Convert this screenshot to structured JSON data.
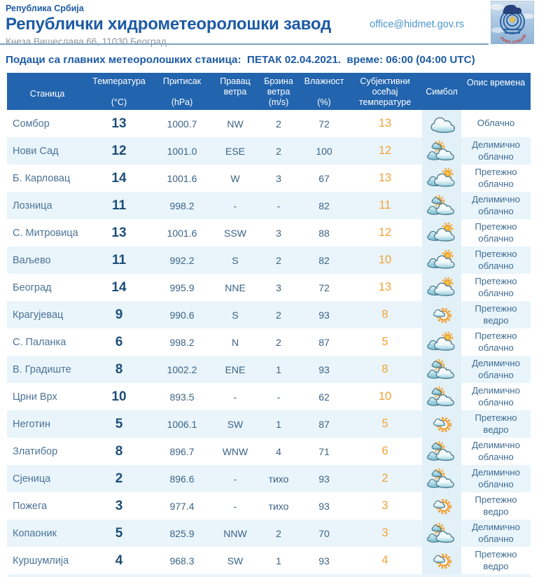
{
  "header": {
    "country": "Република Србија",
    "organization": "Републички хидрометеоролошки завод",
    "address": "Кнеза Вишеслава 66, 11030 Београд",
    "email": "office@hidmet.gov.rs",
    "logo_text": "РХМЗ СРБИЈЕ"
  },
  "subtitle": {
    "text": "Подаци са главних метеоролошких станица:  ПЕТАК 02.04.2021.  време: 06:00 (04:00 UTC)"
  },
  "table": {
    "columns": [
      {
        "id": "station",
        "label": "Станица",
        "unit": ""
      },
      {
        "id": "temperature",
        "label": "Температура",
        "unit": "(°C)"
      },
      {
        "id": "pressure",
        "label": "Притисак",
        "unit": "(hPa)"
      },
      {
        "id": "wind_dir",
        "label": "Правац ветра",
        "unit": ""
      },
      {
        "id": "wind_speed",
        "label": "Брзина ветра",
        "unit": "(m/s)"
      },
      {
        "id": "humidity",
        "label": "Влажност",
        "unit": "(%)"
      },
      {
        "id": "feels_like",
        "label": "Субјективни осећај температуре",
        "unit": ""
      },
      {
        "id": "symbol",
        "label": "Симбол",
        "unit": ""
      },
      {
        "id": "description",
        "label": "Опис времена",
        "unit": ""
      }
    ],
    "rows": [
      {
        "station": "Сомбор",
        "temperature": "13",
        "pressure": "1000.7",
        "wind_dir": "NW",
        "wind_speed": "2",
        "humidity": "72",
        "feels_like": "13",
        "icon": "cloudy",
        "description": "Облачно"
      },
      {
        "station": "Нови Сад",
        "temperature": "12",
        "pressure": "1001.0",
        "wind_dir": "ESE",
        "wind_speed": "2",
        "humidity": "100",
        "feels_like": "12",
        "icon": "partly-cloudy",
        "description": "Делимично облачно"
      },
      {
        "station": "Б. Карловац",
        "temperature": "14",
        "pressure": "1001.6",
        "wind_dir": "W",
        "wind_speed": "3",
        "humidity": "67",
        "feels_like": "13",
        "icon": "mostly-cloudy",
        "description": "Претежно облачно"
      },
      {
        "station": "Лозница",
        "temperature": "11",
        "pressure": "998.2",
        "wind_dir": "-",
        "wind_speed": "-",
        "humidity": "82",
        "feels_like": "11",
        "icon": "partly-cloudy",
        "description": "Делимично облачно"
      },
      {
        "station": "С. Митровица",
        "temperature": "13",
        "pressure": "1001.6",
        "wind_dir": "SSW",
        "wind_speed": "3",
        "humidity": "88",
        "feels_like": "12",
        "icon": "mostly-cloudy",
        "description": "Претежно облачно"
      },
      {
        "station": "Ваљево",
        "temperature": "11",
        "pressure": "992.2",
        "wind_dir": "S",
        "wind_speed": "2",
        "humidity": "82",
        "feels_like": "10",
        "icon": "mostly-cloudy",
        "description": "Претежно облачно"
      },
      {
        "station": "Београд",
        "temperature": "14",
        "pressure": "995.9",
        "wind_dir": "NNE",
        "wind_speed": "3",
        "humidity": "72",
        "feels_like": "13",
        "icon": "mostly-cloudy",
        "description": "Претежно облачно"
      },
      {
        "station": "Крагујевац",
        "temperature": "9",
        "pressure": "990.6",
        "wind_dir": "S",
        "wind_speed": "2",
        "humidity": "93",
        "feels_like": "8",
        "icon": "mostly-clear",
        "description": "Претежно ведро"
      },
      {
        "station": "С. Паланка",
        "temperature": "6",
        "pressure": "998.2",
        "wind_dir": "N",
        "wind_speed": "2",
        "humidity": "87",
        "feels_like": "5",
        "icon": "mostly-cloudy",
        "description": "Претежно облачно"
      },
      {
        "station": "В. Градиште",
        "temperature": "8",
        "pressure": "1002.2",
        "wind_dir": "ENE",
        "wind_speed": "1",
        "humidity": "93",
        "feels_like": "8",
        "icon": "partly-cloudy",
        "description": "Делимично облачно"
      },
      {
        "station": "Црни Врх",
        "temperature": "10",
        "pressure": "893.5",
        "wind_dir": "-",
        "wind_speed": "-",
        "humidity": "62",
        "feels_like": "10",
        "icon": "partly-cloudy",
        "description": "Делимично облачно"
      },
      {
        "station": "Неготин",
        "temperature": "5",
        "pressure": "1006.1",
        "wind_dir": "SW",
        "wind_speed": "1",
        "humidity": "87",
        "feels_like": "5",
        "icon": "mostly-clear",
        "description": "Претежно ведро"
      },
      {
        "station": "Златибор",
        "temperature": "8",
        "pressure": "896.7",
        "wind_dir": "WNW",
        "wind_speed": "4",
        "humidity": "71",
        "feels_like": "6",
        "icon": "partly-cloudy",
        "description": "Делимично облачно"
      },
      {
        "station": "Сјеница",
        "temperature": "2",
        "pressure": "896.6",
        "wind_dir": "-",
        "wind_speed": "тихо",
        "humidity": "93",
        "feels_like": "2",
        "icon": "partly-cloudy",
        "description": "Делимично облачно"
      },
      {
        "station": "Пожега",
        "temperature": "3",
        "pressure": "977.4",
        "wind_dir": "-",
        "wind_speed": "тихо",
        "humidity": "93",
        "feels_like": "3",
        "icon": "mostly-clear",
        "description": "Претежно ведро"
      },
      {
        "station": "Копаоник",
        "temperature": "5",
        "pressure": "825.9",
        "wind_dir": "NNW",
        "wind_speed": "2",
        "humidity": "70",
        "feels_like": "3",
        "icon": "partly-cloudy",
        "description": "Делимично облачно"
      },
      {
        "station": "Куршумлија",
        "temperature": "4",
        "pressure": "968.3",
        "wind_dir": "SW",
        "wind_speed": "1",
        "humidity": "93",
        "feels_like": "4",
        "icon": "mostly-clear",
        "description": "Претежно ведро"
      }
    ]
  },
  "colors": {
    "brand_blue": "#1d5ba4",
    "table_header_bg": "#2264ae",
    "row_alt_bg": "#e9f5fb",
    "symbol_col_bg": "#e2f0f8",
    "temperature_text": "#1d4e79",
    "feels_like_orange": "#f2a235",
    "value_text": "#3c6386",
    "address_gray": "#8d979e",
    "email_blue": "#4a96cd"
  }
}
